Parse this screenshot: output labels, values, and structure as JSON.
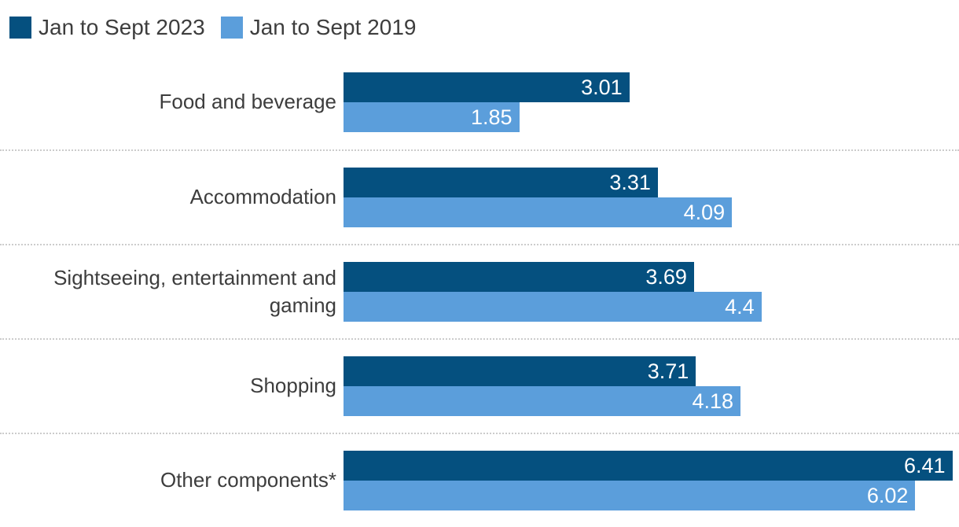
{
  "colors": {
    "series_2023": "#05507f",
    "series_2019": "#5b9edb",
    "label_text": "#3d3d3d",
    "value_text": "#ffffff",
    "separator": "#cccccc",
    "background": "#ffffff"
  },
  "chart_data": {
    "type": "bar",
    "orientation": "horizontal",
    "title": "",
    "xlabel": "",
    "ylabel": "",
    "xlim": [
      0,
      6.48
    ],
    "grid": false,
    "legend_position": "top-left",
    "separator_style": "dotted",
    "categories": [
      "Food and beverage",
      "Accommodation",
      "Sightseeing, entertainment and gaming",
      "Shopping",
      "Other components*"
    ],
    "series": [
      {
        "name": "Jan to Sept 2023",
        "color": "#05507f",
        "values": [
          3.01,
          3.31,
          3.69,
          3.71,
          6.41
        ]
      },
      {
        "name": "Jan to Sept 2019",
        "color": "#5b9edb",
        "values": [
          1.85,
          4.09,
          4.4,
          4.18,
          6.02
        ]
      }
    ]
  }
}
